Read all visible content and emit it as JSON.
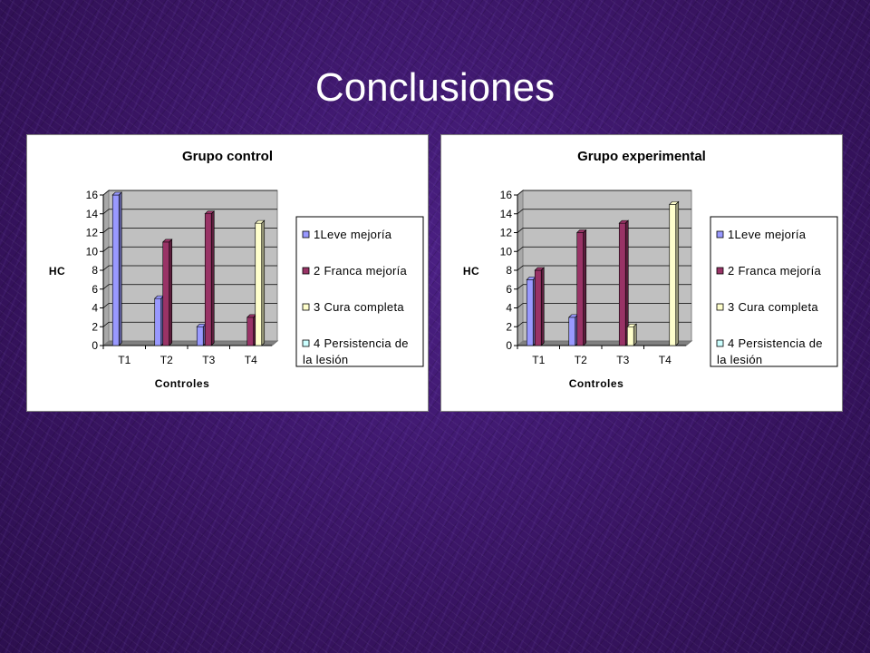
{
  "slide": {
    "title": "Conclusiones"
  },
  "chart_data": [
    {
      "type": "bar",
      "title": "Grupo control",
      "xlabel": "Controles",
      "ylabel": "HC",
      "ylim": [
        0,
        16
      ],
      "yticks": [
        "0",
        "2",
        "4",
        "6",
        "8",
        "10",
        "12",
        "14",
        "16"
      ],
      "categories": [
        "T1",
        "T2",
        "T3",
        "T4"
      ],
      "legend_position": "right",
      "series": [
        {
          "name": "1Leve mejoría",
          "color": "#9999ff",
          "values": [
            16,
            5,
            2,
            0
          ]
        },
        {
          "name": "2 Franca mejoría",
          "color": "#993366",
          "values": [
            0,
            11,
            14,
            3
          ]
        },
        {
          "name": "3 Cura completa",
          "color": "#ffffcc",
          "values": [
            0,
            0,
            0,
            13
          ]
        },
        {
          "name": "4 Persistencia de la lesión",
          "color": "#ccffff",
          "values": [
            0,
            0,
            0,
            0
          ]
        }
      ]
    },
    {
      "type": "bar",
      "title": "Grupo experimental",
      "xlabel": "Controles",
      "ylabel": "HC",
      "ylim": [
        0,
        16
      ],
      "yticks": [
        "0",
        "2",
        "4",
        "6",
        "8",
        "10",
        "12",
        "14",
        "16"
      ],
      "categories": [
        "T1",
        "T2",
        "T3",
        "T4"
      ],
      "legend_position": "right",
      "series": [
        {
          "name": "1Leve mejoría",
          "color": "#9999ff",
          "values": [
            7,
            3,
            0,
            0
          ]
        },
        {
          "name": "2 Franca mejoría",
          "color": "#993366",
          "values": [
            8,
            12,
            13,
            0
          ]
        },
        {
          "name": "3 Cura completa",
          "color": "#ffffcc",
          "values": [
            0,
            0,
            2,
            15
          ]
        },
        {
          "name": "4 Persistencia de la lesión",
          "color": "#ccffff",
          "values": [
            0,
            0,
            0,
            0
          ]
        }
      ]
    }
  ]
}
